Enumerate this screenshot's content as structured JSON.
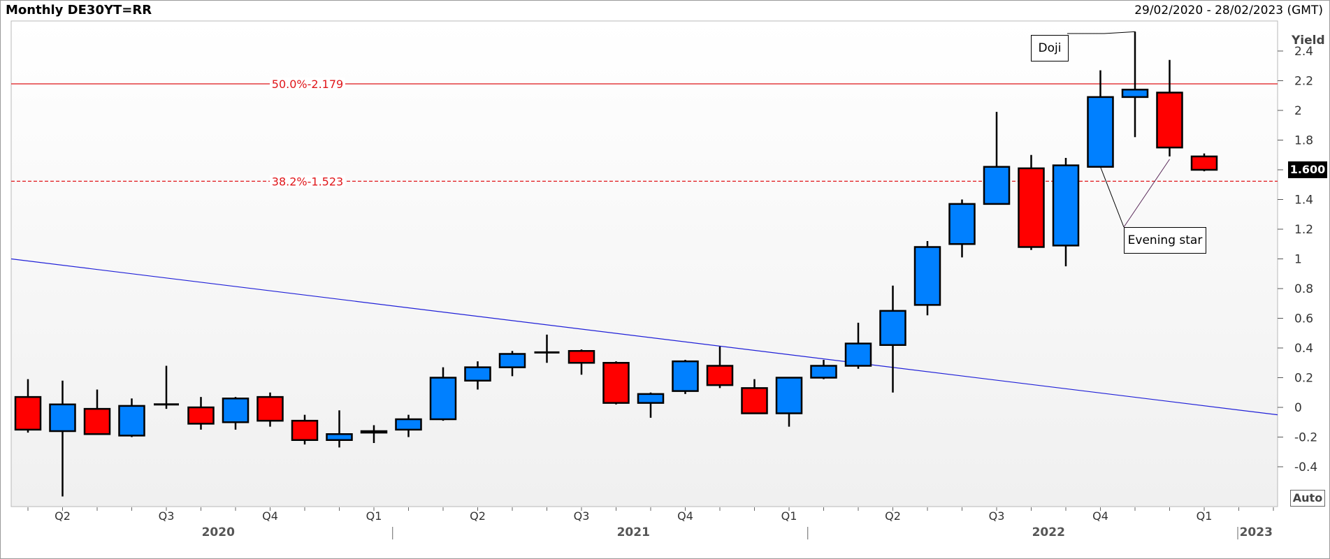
{
  "header": {
    "title": "Monthly DE30YT=RR",
    "date_range": "29/02/2020 - 28/02/2023 (GMT)"
  },
  "axis_controls": {
    "auto_label": "Auto",
    "last_price": "1.600"
  },
  "annotations": {
    "doji": "Doji",
    "evening_star": "Evening star"
  },
  "colors": {
    "up": "#0080ff",
    "down": "#ff0000",
    "fib_line": "#e0161a",
    "trend_line": "#2020d8"
  },
  "chart_data": {
    "type": "candlestick",
    "title": "Monthly DE30YT=RR",
    "ylabel": "Yield",
    "ylim": [
      -0.6,
      2.6
    ],
    "yticks": [
      "2.4",
      "2.2",
      "2",
      "1.8",
      "1.6",
      "1.4",
      "1.2",
      "1",
      "0.8",
      "0.6",
      "0.4",
      "0.2",
      "0",
      "-0.2",
      "-0.4"
    ],
    "quarter_labels": [
      {
        "label": "Q2",
        "month": 1
      },
      {
        "label": "Q3",
        "month": 4
      },
      {
        "label": "Q4",
        "month": 7
      },
      {
        "label": "Q1",
        "month": 10
      },
      {
        "label": "Q2",
        "month": 13
      },
      {
        "label": "Q3",
        "month": 16
      },
      {
        "label": "Q4",
        "month": 19
      },
      {
        "label": "Q1",
        "month": 22
      },
      {
        "label": "Q2",
        "month": 25
      },
      {
        "label": "Q3",
        "month": 28
      },
      {
        "label": "Q4",
        "month": 31
      },
      {
        "label": "Q1",
        "month": 34
      }
    ],
    "year_labels": [
      {
        "label": "2020",
        "month": 5.5
      },
      {
        "label": "2021",
        "month": 17.5
      },
      {
        "label": "2022",
        "month": 29.5
      },
      {
        "label": "2023",
        "month": 35.5
      }
    ],
    "candles": [
      {
        "date": "2020-02",
        "open": 0.07,
        "high": 0.19,
        "low": -0.17,
        "close": -0.15
      },
      {
        "date": "2020-03",
        "open": -0.16,
        "high": 0.18,
        "low": -0.6,
        "close": 0.02
      },
      {
        "date": "2020-04",
        "open": -0.01,
        "high": 0.12,
        "low": -0.18,
        "close": -0.18
      },
      {
        "date": "2020-05",
        "open": -0.19,
        "high": 0.06,
        "low": -0.2,
        "close": 0.01
      },
      {
        "date": "2020-06",
        "open": 0.02,
        "high": 0.28,
        "low": -0.01,
        "close": 0.02
      },
      {
        "date": "2020-07",
        "open": 0.0,
        "high": 0.07,
        "low": -0.15,
        "close": -0.11
      },
      {
        "date": "2020-08",
        "open": -0.1,
        "high": 0.07,
        "low": -0.15,
        "close": 0.06
      },
      {
        "date": "2020-09",
        "open": 0.07,
        "high": 0.1,
        "low": -0.13,
        "close": -0.09
      },
      {
        "date": "2020-10",
        "open": -0.09,
        "high": -0.05,
        "low": -0.25,
        "close": -0.22
      },
      {
        "date": "2020-11",
        "open": -0.22,
        "high": -0.02,
        "low": -0.27,
        "close": -0.18
      },
      {
        "date": "2020-12",
        "open": -0.17,
        "high": -0.12,
        "low": -0.24,
        "close": -0.16
      },
      {
        "date": "2021-01",
        "open": -0.15,
        "high": -0.05,
        "low": -0.2,
        "close": -0.08
      },
      {
        "date": "2021-02",
        "open": -0.08,
        "high": 0.27,
        "low": -0.09,
        "close": 0.2
      },
      {
        "date": "2021-03",
        "open": 0.18,
        "high": 0.31,
        "low": 0.12,
        "close": 0.27
      },
      {
        "date": "2021-04",
        "open": 0.27,
        "high": 0.38,
        "low": 0.21,
        "close": 0.36
      },
      {
        "date": "2021-05",
        "open": 0.37,
        "high": 0.49,
        "low": 0.3,
        "close": 0.37
      },
      {
        "date": "2021-06",
        "open": 0.38,
        "high": 0.39,
        "low": 0.22,
        "close": 0.3
      },
      {
        "date": "2021-07",
        "open": 0.3,
        "high": 0.31,
        "low": 0.02,
        "close": 0.03
      },
      {
        "date": "2021-08",
        "open": 0.03,
        "high": 0.1,
        "low": -0.07,
        "close": 0.09
      },
      {
        "date": "2021-09",
        "open": 0.11,
        "high": 0.32,
        "low": 0.09,
        "close": 0.31
      },
      {
        "date": "2021-10",
        "open": 0.28,
        "high": 0.41,
        "low": 0.13,
        "close": 0.15
      },
      {
        "date": "2021-11",
        "open": 0.13,
        "high": 0.19,
        "low": -0.04,
        "close": -0.04
      },
      {
        "date": "2021-12",
        "open": -0.04,
        "high": 0.2,
        "low": -0.13,
        "close": 0.2
      },
      {
        "date": "2022-01",
        "open": 0.2,
        "high": 0.32,
        "low": 0.19,
        "close": 0.28
      },
      {
        "date": "2022-02",
        "open": 0.28,
        "high": 0.57,
        "low": 0.26,
        "close": 0.43
      },
      {
        "date": "2022-03",
        "open": 0.42,
        "high": 0.82,
        "low": 0.1,
        "close": 0.65
      },
      {
        "date": "2022-04",
        "open": 0.69,
        "high": 1.12,
        "low": 0.62,
        "close": 1.08
      },
      {
        "date": "2022-05",
        "open": 1.1,
        "high": 1.4,
        "low": 1.01,
        "close": 1.37
      },
      {
        "date": "2022-06",
        "open": 1.37,
        "high": 1.99,
        "low": 1.37,
        "close": 1.62
      },
      {
        "date": "2022-07",
        "open": 1.61,
        "high": 1.7,
        "low": 1.06,
        "close": 1.08
      },
      {
        "date": "2022-08",
        "open": 1.09,
        "high": 1.68,
        "low": 0.95,
        "close": 1.63
      },
      {
        "date": "2022-09",
        "open": 1.62,
        "high": 2.27,
        "low": 1.62,
        "close": 2.09
      },
      {
        "date": "2022-10",
        "open": 2.09,
        "high": 2.53,
        "low": 1.82,
        "close": 2.14
      },
      {
        "date": "2022-11",
        "open": 2.12,
        "high": 2.34,
        "low": 1.69,
        "close": 1.75
      },
      {
        "date": "2022-12",
        "open": 1.69,
        "high": 1.71,
        "low": 1.59,
        "close": 1.6
      }
    ],
    "horizontal_lines": [
      {
        "label": "50.0%-2.179",
        "value": 2.179,
        "style": "solid"
      },
      {
        "label": "38.2%-1.523",
        "value": 1.523,
        "style": "dashed"
      }
    ],
    "trend_line": {
      "start_value": 1.0,
      "end_value": -0.05
    }
  }
}
